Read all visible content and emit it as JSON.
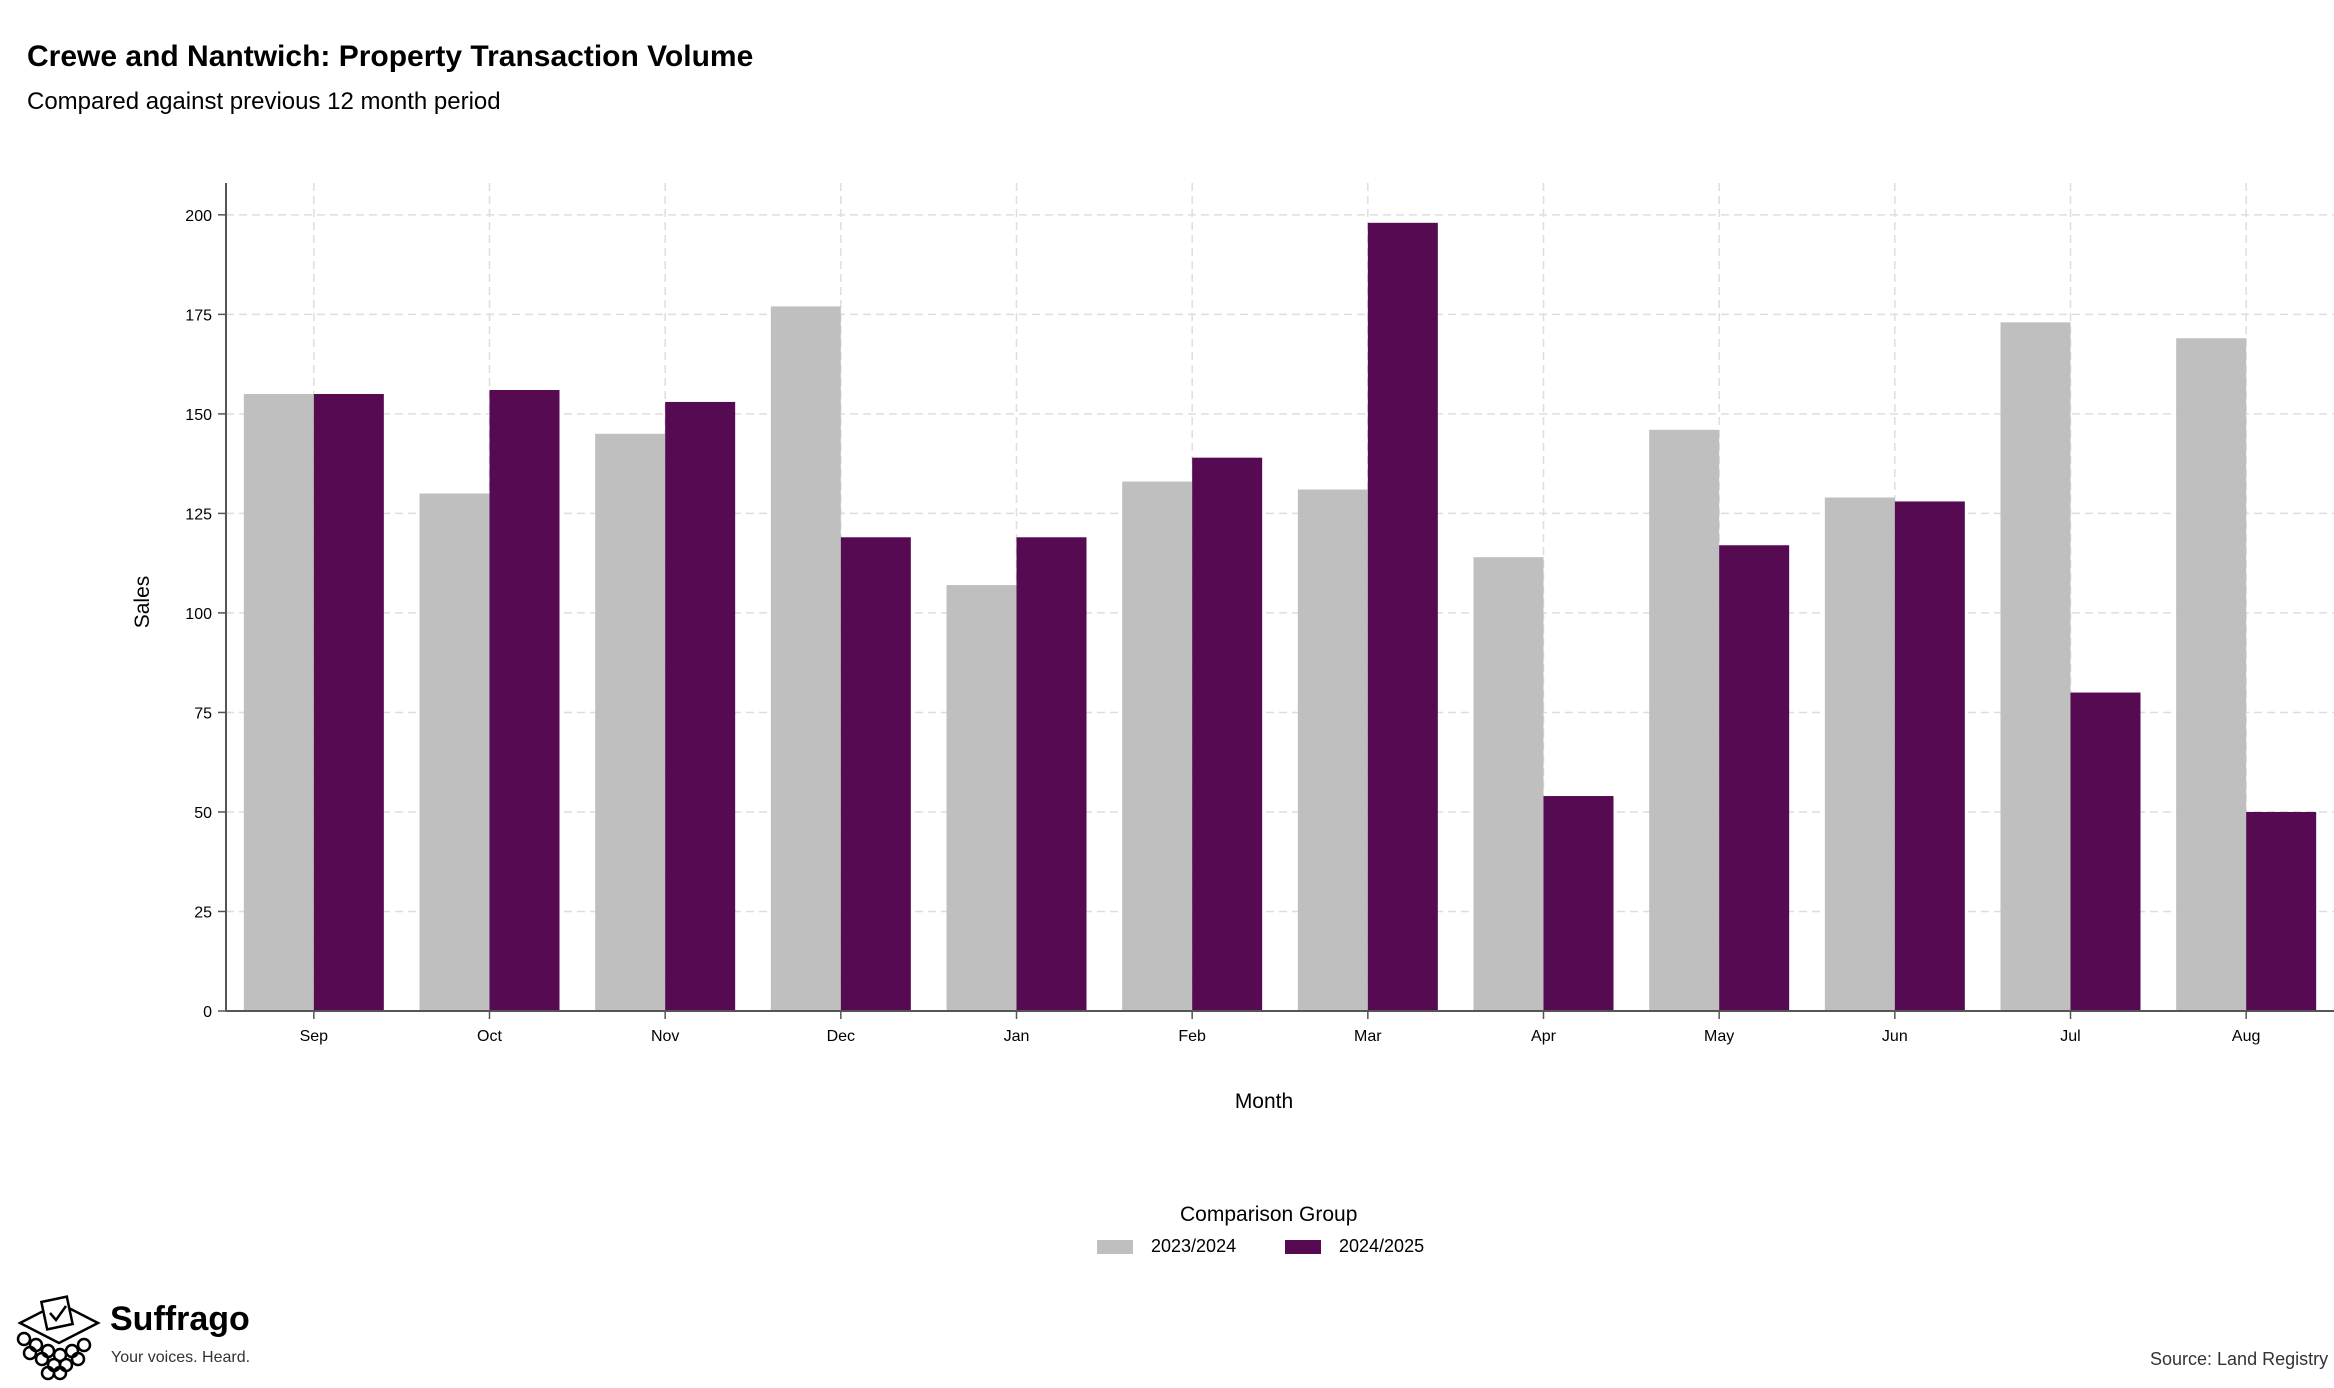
{
  "header": {
    "title": "Crewe and Nantwich: Property Transaction Volume",
    "subtitle": "Compared against previous 12 month period"
  },
  "chart_data": {
    "type": "bar",
    "title": "Crewe and Nantwich: Property Transaction Volume",
    "subtitle": "Compared against previous 12 month period",
    "xlabel": "Month",
    "ylabel": "Sales",
    "ylim": [
      0,
      208
    ],
    "yticks": [
      0,
      25,
      50,
      75,
      100,
      125,
      150,
      175,
      200
    ],
    "categories": [
      "Sep",
      "Oct",
      "Nov",
      "Dec",
      "Jan",
      "Feb",
      "Mar",
      "Apr",
      "May",
      "Jun",
      "Jul",
      "Aug"
    ],
    "series": [
      {
        "name": "2023/2024",
        "color": "#bfbfbf",
        "values": [
          155,
          130,
          145,
          177,
          107,
          133,
          131,
          114,
          146,
          129,
          173,
          169
        ]
      },
      {
        "name": "2024/2025",
        "color": "#560a52",
        "values": [
          155,
          156,
          153,
          119,
          119,
          139,
          198,
          54,
          117,
          128,
          80,
          50
        ]
      }
    ],
    "grid": true,
    "legend_title": "Comparison Group",
    "legend_position": "bottom"
  },
  "branding": {
    "name": "Suffrago",
    "tagline": "Your voices. Heard.",
    "logo_icon": "ballot-box-icon"
  },
  "footer": {
    "source": "Source: Land Registry"
  }
}
